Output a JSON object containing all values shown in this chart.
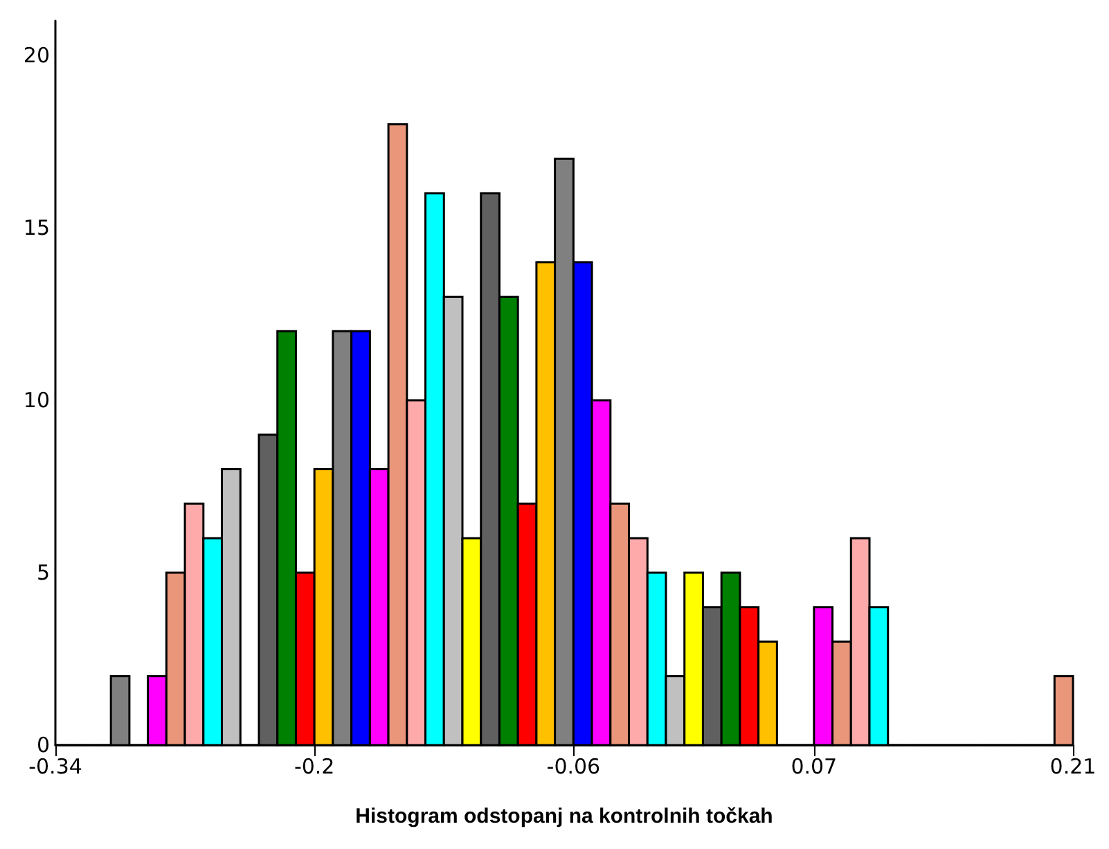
{
  "chart_data": {
    "type": "histogram",
    "xlabel": "Histogram odstopanj na kontrolnih točkah",
    "bins": [
      -0.34,
      -0.33,
      -0.32,
      -0.31,
      -0.3,
      -0.29,
      -0.28,
      -0.27,
      -0.26,
      -0.25,
      -0.24,
      -0.23,
      -0.22,
      -0.21,
      -0.2,
      -0.19,
      -0.18,
      -0.17,
      -0.16,
      -0.15,
      -0.14,
      -0.13,
      -0.12,
      -0.11,
      -0.1,
      -0.09,
      -0.08,
      -0.07,
      -0.06,
      -0.05,
      -0.04,
      -0.03,
      -0.02,
      -0.01,
      0,
      0.01,
      0.02,
      0.03,
      0.04,
      0.05,
      0.06,
      0.07,
      0.08,
      0.09,
      0.1,
      0.11,
      0.12,
      0.13,
      0.14,
      0.15,
      0.16,
      0.17,
      0.18,
      0.19,
      0.2,
      0.21
    ],
    "values": [
      0,
      0,
      0,
      2,
      0,
      2,
      5,
      7,
      6,
      8,
      0,
      9,
      12,
      5,
      8,
      12,
      12,
      8,
      18,
      10,
      16,
      13,
      6,
      16,
      13,
      7,
      14,
      17,
      14,
      10,
      7,
      6,
      5,
      2,
      5,
      4,
      5,
      4,
      3,
      0,
      0,
      4,
      3,
      6,
      4,
      0,
      0,
      0,
      0,
      0,
      0,
      0,
      0,
      0,
      2
    ],
    "colors": [
      "#008000",
      "#ff0000",
      "#ffc000",
      "#808080",
      "#0000ff",
      "#ff00ff",
      "#e9967a",
      "#ffaaaa",
      "#00ffff",
      "#c0c0c0",
      "#ffff00",
      "#606060",
      "#008000",
      "#ff0000",
      "#ffc000",
      "#808080",
      "#0000ff",
      "#ff00ff",
      "#e9967a",
      "#ffaaaa",
      "#00ffff",
      "#c0c0c0",
      "#ffff00",
      "#606060",
      "#008000",
      "#ff0000",
      "#ffc000",
      "#808080",
      "#0000ff",
      "#ff00ff",
      "#e9967a",
      "#ffaaaa",
      "#00ffff",
      "#c0c0c0",
      "#ffff00",
      "#606060",
      "#008000",
      "#ff0000",
      "#ffc000",
      "#808080",
      "#0000ff",
      "#ff00ff",
      "#e9967a",
      "#ffaaaa",
      "#00ffff",
      "#c0c0c0",
      "#ffff00",
      "#606060",
      "#008000",
      "#ff0000",
      "#ffc000",
      "#808080",
      "#0000ff",
      "#ff00ff",
      "#e9967a"
    ],
    "xlim": [
      -0.34,
      0.21
    ],
    "xticks": [
      -0.34,
      -0.2,
      -0.06,
      0.07,
      0.21
    ],
    "ylim": [
      0,
      21
    ],
    "yticks": [
      0,
      5,
      10,
      15,
      20
    ]
  }
}
